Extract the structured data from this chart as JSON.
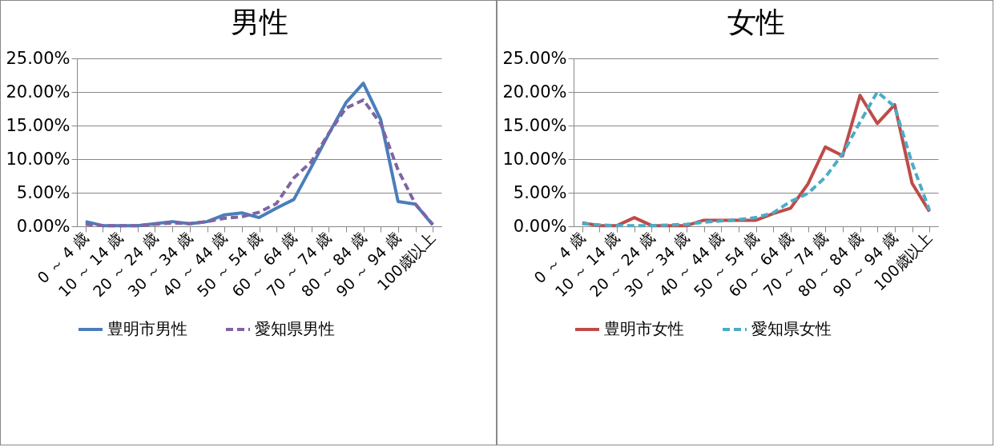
{
  "chart_data": [
    {
      "type": "line",
      "title": "男性",
      "categories": [
        "0 ～ 4 歳",
        null,
        "10 ～ 14 歳",
        null,
        "20 ～ 24 歳",
        null,
        "30 ～ 34 歳",
        null,
        "40 ～ 44 歳",
        null,
        "50 ～ 54 歳",
        null,
        "60 ～ 64 歳",
        null,
        "70 ～ 74 歳",
        null,
        "80 ～ 84 歳",
        null,
        "90 ～ 94 歳",
        null,
        "100歳以上"
      ],
      "series": [
        {
          "name": "豊明市男性",
          "color": "#4a7ebb",
          "line_style": "solid",
          "values": [
            0.7,
            0.1,
            0.1,
            0.1,
            0.4,
            0.7,
            0.4,
            0.7,
            1.7,
            2.0,
            1.3,
            2.7,
            4.0,
            8.8,
            13.7,
            18.4,
            21.3,
            15.9,
            3.7,
            3.3,
            0.2
          ]
        },
        {
          "name": "愛知県男性",
          "color": "#8064a2",
          "line_style": "dashed",
          "values": [
            0.3,
            0.1,
            0.1,
            0.1,
            0.3,
            0.5,
            0.4,
            0.7,
            1.2,
            1.4,
            2.1,
            3.4,
            7.2,
            9.6,
            13.8,
            17.6,
            18.8,
            15.3,
            8.4,
            3.3,
            0.3
          ]
        }
      ],
      "ylim": [
        0,
        25
      ],
      "yticks": [
        {
          "value": 0,
          "label": "0.00%"
        },
        {
          "value": 5,
          "label": "5.00%"
        },
        {
          "value": 10,
          "label": "10.00%"
        },
        {
          "value": 15,
          "label": "15.00%"
        },
        {
          "value": 20,
          "label": "20.00%"
        },
        {
          "value": 25,
          "label": "25.00%"
        }
      ],
      "grid": "y",
      "legend": "bottom"
    },
    {
      "type": "line",
      "title": "女性",
      "categories": [
        "0 ～ 4 歳",
        null,
        "10 ～ 14 歳",
        null,
        "20 ～ 24 歳",
        null,
        "30 ～ 34 歳",
        null,
        "40 ～ 44 歳",
        null,
        "50 ～ 54 歳",
        null,
        "60 ～ 64 歳",
        null,
        "70 ～ 74 歳",
        null,
        "80 ～ 84 歳",
        null,
        "90 ～ 94 歳",
        null,
        "100歳以上"
      ],
      "series": [
        {
          "name": "豊明市女性",
          "color": "#be4b48",
          "line_style": "solid",
          "values": [
            0.5,
            0.1,
            0.1,
            1.3,
            0.1,
            0.1,
            0.1,
            0.9,
            0.9,
            0.9,
            0.9,
            1.9,
            2.7,
            6.3,
            11.8,
            10.5,
            19.5,
            15.3,
            18.1,
            6.4,
            2.2
          ]
        },
        {
          "name": "愛知県女性",
          "color": "#4bacc6",
          "line_style": "dashed",
          "values": [
            0.4,
            0.2,
            0.1,
            0.1,
            0.1,
            0.2,
            0.3,
            0.6,
            0.8,
            1.0,
            1.3,
            2.0,
            3.7,
            4.9,
            7.3,
            10.8,
            15.5,
            20.0,
            17.8,
            9.4,
            2.4
          ]
        }
      ],
      "ylim": [
        0,
        25
      ],
      "yticks": [
        {
          "value": 0,
          "label": "0.00%"
        },
        {
          "value": 5,
          "label": "5.00%"
        },
        {
          "value": 10,
          "label": "10.00%"
        },
        {
          "value": 15,
          "label": "15.00%"
        },
        {
          "value": 20,
          "label": "20.00%"
        },
        {
          "value": 25,
          "label": "25.00%"
        }
      ],
      "grid": "y",
      "legend": "bottom"
    }
  ]
}
